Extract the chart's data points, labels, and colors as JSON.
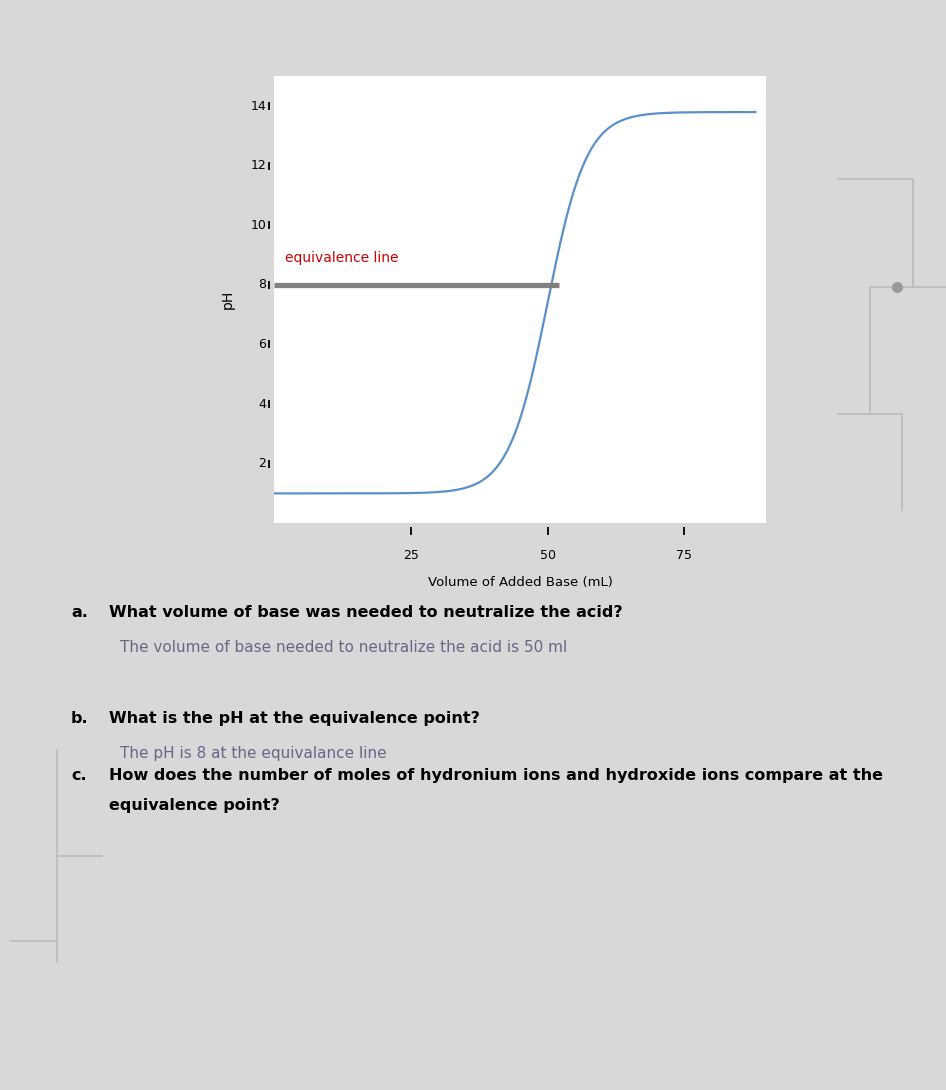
{
  "curve_color": "#5b8fc9",
  "equivalence_line_color": "#808080",
  "equivalence_text_color": "#cc0000",
  "equivalence_ph": 8,
  "xlabel": "Volume of Added Base (mL)",
  "ylabel": "pH",
  "yticks": [
    2,
    4,
    6,
    8,
    10,
    12,
    14
  ],
  "xticks": [
    25,
    50,
    75
  ],
  "ylim": [
    0,
    15
  ],
  "xlim": [
    0,
    90
  ],
  "equivalence_label": "equivalence line",
  "section_bg": "#e8eaf0",
  "q_a_label": "a.",
  "q_a_text": "What volume of base was needed to neutralize the acid?",
  "q_a_answer": "The volume of base needed to neutralize the acid is 50 ml",
  "q_b_label": "b.",
  "q_b_text": "What is the pH at the equivalence point?",
  "q_b_answer": "The pH is 8 at the equivalance line",
  "q_c_label": "c.",
  "q_c_text_line1": "How does the number of moles of hydronium ions and hydroxide ions compare at the",
  "q_c_text_line2": "equivalence point?",
  "divider_color": "#3a3a3a",
  "tech_bg": "#e2e2e2",
  "page_bg": "#ffffff",
  "fig_bg": "#d8d8d8"
}
